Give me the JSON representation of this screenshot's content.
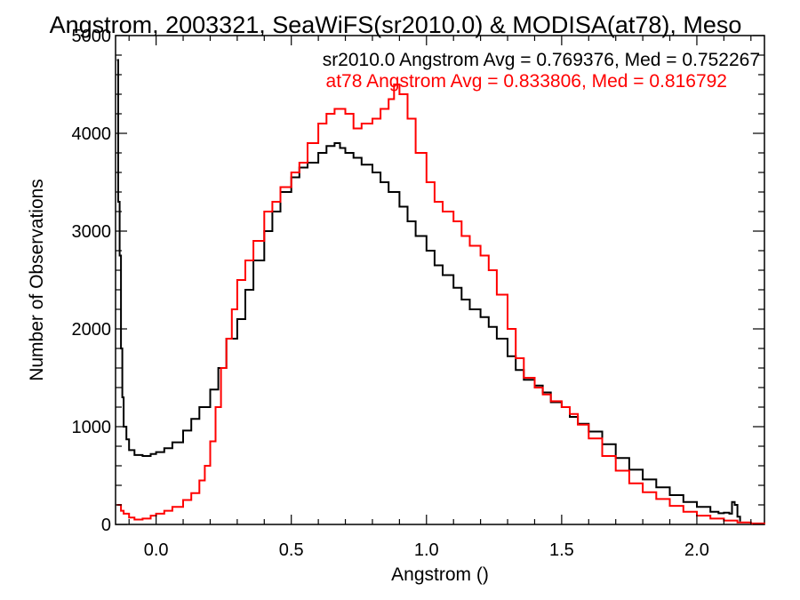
{
  "chart_data": {
    "type": "line",
    "title": "Angstrom, 2003321, SeaWiFS(sr2010.0) & MODISA(at78), Meso",
    "xlabel": "Angstrom ()",
    "ylabel": "Number of Observations",
    "xlim": [
      -0.15,
      2.25
    ],
    "ylim": [
      0,
      5000
    ],
    "x_ticks": [
      0.0,
      0.5,
      1.0,
      1.5,
      2.0
    ],
    "x_tick_labels": [
      "0.0",
      "0.5",
      "1.0",
      "1.5",
      "2.0"
    ],
    "y_ticks": [
      0,
      1000,
      2000,
      3000,
      4000,
      5000
    ],
    "y_tick_labels": [
      "0",
      "1000",
      "2000",
      "3000",
      "4000",
      "5000"
    ],
    "grid": false,
    "legend_placement": "top-right",
    "series": [
      {
        "name": "sr2010.0 Angstrom Avg = 0.769376, Med = 0.752267",
        "color": "#000000",
        "x": [
          -0.145,
          -0.14,
          -0.135,
          -0.13,
          -0.125,
          -0.12,
          -0.11,
          -0.1,
          -0.08,
          -0.05,
          -0.02,
          0.0,
          0.03,
          0.06,
          0.1,
          0.13,
          0.16,
          0.2,
          0.23,
          0.26,
          0.3,
          0.33,
          0.36,
          0.4,
          0.43,
          0.46,
          0.5,
          0.53,
          0.56,
          0.6,
          0.63,
          0.66,
          0.68,
          0.7,
          0.73,
          0.76,
          0.8,
          0.83,
          0.86,
          0.9,
          0.93,
          0.96,
          1.0,
          1.03,
          1.06,
          1.1,
          1.13,
          1.16,
          1.2,
          1.23,
          1.26,
          1.3,
          1.33,
          1.36,
          1.4,
          1.43,
          1.46,
          1.5,
          1.53,
          1.56,
          1.6,
          1.65,
          1.7,
          1.75,
          1.8,
          1.85,
          1.9,
          1.95,
          2.0,
          2.05,
          2.08,
          2.1,
          2.12,
          2.13,
          2.14,
          2.15,
          2.16
        ],
        "y": [
          4750,
          3300,
          2750,
          1800,
          1300,
          1000,
          870,
          760,
          710,
          700,
          720,
          740,
          780,
          840,
          960,
          1080,
          1200,
          1380,
          1600,
          1900,
          2100,
          2400,
          2700,
          3000,
          3200,
          3400,
          3550,
          3650,
          3700,
          3800,
          3870,
          3900,
          3850,
          3800,
          3750,
          3680,
          3600,
          3500,
          3400,
          3250,
          3100,
          2950,
          2800,
          2650,
          2550,
          2420,
          2300,
          2200,
          2120,
          2020,
          1900,
          1720,
          1580,
          1480,
          1420,
          1350,
          1250,
          1200,
          1100,
          1030,
          950,
          820,
          680,
          560,
          460,
          380,
          300,
          230,
          180,
          130,
          115,
          120,
          110,
          230,
          200,
          80,
          30
        ]
      },
      {
        "name": "at78 Angstrom Avg = 0.833806, Med = 0.816792",
        "color": "#ff0000",
        "x": [
          -0.145,
          -0.13,
          -0.12,
          -0.1,
          -0.08,
          -0.05,
          -0.02,
          0.0,
          0.03,
          0.06,
          0.1,
          0.13,
          0.16,
          0.18,
          0.2,
          0.22,
          0.24,
          0.26,
          0.28,
          0.3,
          0.33,
          0.36,
          0.4,
          0.43,
          0.46,
          0.5,
          0.53,
          0.56,
          0.6,
          0.63,
          0.66,
          0.7,
          0.73,
          0.76,
          0.8,
          0.83,
          0.86,
          0.88,
          0.9,
          0.93,
          0.96,
          1.0,
          1.03,
          1.06,
          1.1,
          1.13,
          1.16,
          1.2,
          1.23,
          1.26,
          1.3,
          1.33,
          1.36,
          1.4,
          1.43,
          1.46,
          1.5,
          1.53,
          1.56,
          1.6,
          1.65,
          1.7,
          1.75,
          1.8,
          1.85,
          1.9,
          1.95,
          2.0,
          2.05,
          2.1,
          2.15,
          2.2,
          2.25
        ],
        "y": [
          200,
          140,
          110,
          70,
          50,
          60,
          90,
          110,
          140,
          180,
          250,
          320,
          450,
          600,
          850,
          1200,
          1600,
          1900,
          2200,
          2500,
          2700,
          2900,
          3200,
          3300,
          3450,
          3600,
          3700,
          3900,
          4100,
          4200,
          4250,
          4200,
          4050,
          4100,
          4150,
          4250,
          4350,
          4500,
          4400,
          4150,
          3800,
          3500,
          3300,
          3200,
          3100,
          2950,
          2850,
          2750,
          2600,
          2350,
          2000,
          1700,
          1500,
          1400,
          1330,
          1260,
          1200,
          1130,
          1020,
          880,
          700,
          550,
          420,
          330,
          260,
          190,
          130,
          90,
          60,
          40,
          20,
          10,
          5
        ]
      }
    ]
  }
}
